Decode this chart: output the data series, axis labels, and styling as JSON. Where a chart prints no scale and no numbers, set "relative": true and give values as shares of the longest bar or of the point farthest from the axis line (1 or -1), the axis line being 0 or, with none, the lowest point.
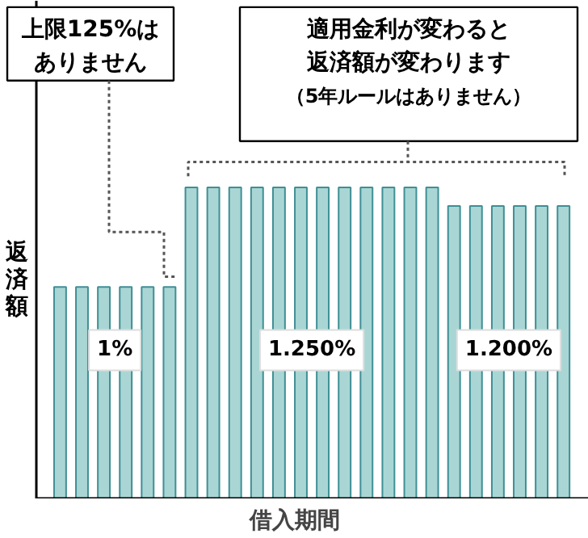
{
  "chart_data": {
    "type": "bar",
    "relative": true,
    "categories": [
      null,
      null,
      null,
      null,
      null,
      null,
      null,
      null,
      null,
      null,
      null,
      null,
      null,
      null,
      null,
      null,
      null,
      null,
      null,
      null,
      null,
      null,
      null,
      null
    ],
    "values": [
      0.68,
      0.68,
      0.68,
      0.68,
      0.68,
      0.68,
      1,
      1,
      1,
      1,
      1,
      1,
      1,
      1,
      1,
      1,
      1,
      1,
      0.94,
      0.94,
      0.94,
      0.94,
      0.94,
      0.94
    ],
    "color": "#a9d6d4",
    "xlabel": "借入期間",
    "ylabel": "返済額",
    "annotations": [
      "上限125%は",
      "ありません",
      "適用金利が変わると",
      "返済額が変わります",
      "（5年ルールはありません）",
      "1%",
      "1.250%",
      "1.200%"
    ]
  }
}
